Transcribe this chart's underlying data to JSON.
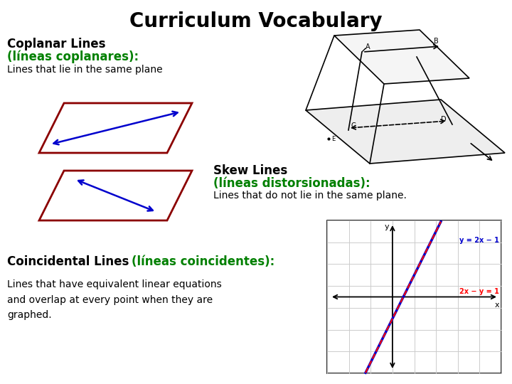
{
  "title": "Curriculum Vocabulary",
  "title_fontsize": 20,
  "background_color": "#ffffff",
  "black": "#000000",
  "green": "#008000",
  "dark_red": "#8B0000",
  "blue": "#0000CD",
  "red": "#FF0000",
  "gray_grid": "#cccccc",
  "coplanar_line1": "Coplanar Lines",
  "coplanar_line2": "(líneas coplanares):",
  "coplanar_line3": "Lines that lie in the same plane",
  "skew_line1": "Skew Lines",
  "skew_line2": "(líneas distorsionadas):",
  "skew_line3": "Lines that do not lie in the same plane.",
  "coincidental_line1": "Coincidental Lines ",
  "coincidental_green": "(líneas coincidentes):",
  "coincidental_line3": "Lines that have equivalent linear equations\nand overlap at every point when they are\ngraphed.",
  "eq1": "y = 2x − 1",
  "eq2": "2x − y = 1"
}
